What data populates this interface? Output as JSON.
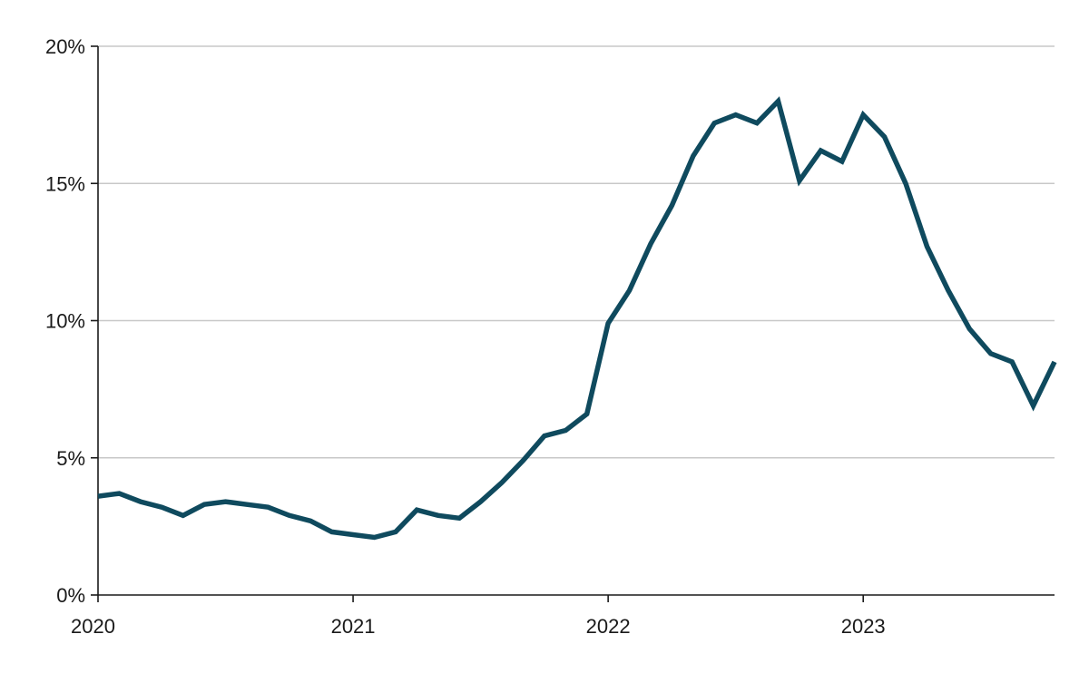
{
  "chart_data": {
    "type": "line",
    "title": "",
    "xlabel": "",
    "ylabel": "",
    "x_ticks": [
      {
        "value": 2020,
        "label": "2020"
      },
      {
        "value": 2021,
        "label": "2021"
      },
      {
        "value": 2022,
        "label": "2022"
      },
      {
        "value": 2023,
        "label": "2023"
      }
    ],
    "y_ticks": [
      {
        "value": 0,
        "label": "0%"
      },
      {
        "value": 5,
        "label": "5%"
      },
      {
        "value": 10,
        "label": "10%"
      },
      {
        "value": 15,
        "label": "15%"
      },
      {
        "value": 20,
        "label": "20%"
      }
    ],
    "xlim": [
      "2020-01",
      "2023-10"
    ],
    "ylim": [
      0,
      20
    ],
    "grid": "horizontal",
    "legend": "none",
    "series": [
      {
        "color": "#0f4a5e",
        "x": [
          "2020-01",
          "2020-02",
          "2020-03",
          "2020-04",
          "2020-05",
          "2020-06",
          "2020-07",
          "2020-08",
          "2020-09",
          "2020-10",
          "2020-11",
          "2020-12",
          "2021-01",
          "2021-02",
          "2021-03",
          "2021-04",
          "2021-05",
          "2021-06",
          "2021-07",
          "2021-08",
          "2021-09",
          "2021-10",
          "2021-11",
          "2021-12",
          "2022-01",
          "2022-02",
          "2022-03",
          "2022-04",
          "2022-05",
          "2022-06",
          "2022-07",
          "2022-08",
          "2022-09",
          "2022-10",
          "2022-11",
          "2022-12",
          "2023-01",
          "2023-02",
          "2023-03",
          "2023-04",
          "2023-05",
          "2023-06",
          "2023-07",
          "2023-08",
          "2023-09",
          "2023-10"
        ],
        "values": [
          3.6,
          3.7,
          3.4,
          3.2,
          2.9,
          3.3,
          3.4,
          3.3,
          3.2,
          2.9,
          2.7,
          2.3,
          2.2,
          2.1,
          2.3,
          3.1,
          2.9,
          2.8,
          3.4,
          4.1,
          4.9,
          5.8,
          6.0,
          6.6,
          9.9,
          11.1,
          12.8,
          14.2,
          16.0,
          17.2,
          17.5,
          17.2,
          18.0,
          15.1,
          16.2,
          15.8,
          17.5,
          16.7,
          15.0,
          12.7,
          11.1,
          9.7,
          8.8,
          8.5,
          6.9,
          8.5
        ]
      }
    ]
  }
}
